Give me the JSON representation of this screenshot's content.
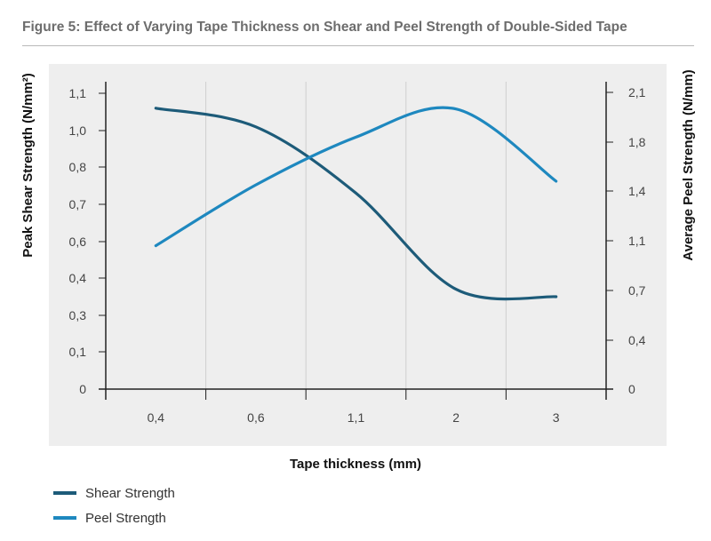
{
  "header": {
    "title": "Figure 5: Effect of Varying Tape Thickness on Shear and Peel Strength of Double-Sided Tape"
  },
  "colors": {
    "shear": "#1d5b79",
    "peel": "#1e88bf",
    "axis": "#222222",
    "grid": "#cfcfcf",
    "panel": "#eeeeee"
  },
  "chart_data": {
    "type": "line",
    "title": "Figure 5: Effect of Varying Tape Thickness on Shear and Peel Strength of Double-Sided Tape",
    "xlabel": "Tape thickness (mm)",
    "ylabel_left": "Peak Shear Strength (N/mm²)",
    "ylabel_right": "Average Peel Strength (N/mm)",
    "categories": [
      "0,4",
      "0,6",
      "1,1",
      "2",
      "3"
    ],
    "left_axis_ticks": [
      "0",
      "0,1",
      "0,3",
      "0,4",
      "0,6",
      "0,7",
      "0,8",
      "1,0",
      "1,1"
    ],
    "right_axis_ticks": [
      "0",
      "0,4",
      "0,7",
      "1,1",
      "1,4",
      "1,8",
      "2,1"
    ],
    "grid": "vertical",
    "legend_position": "bottom-left",
    "series": [
      {
        "name": "Shear Strength",
        "axis": "left",
        "x": [
          "0,4",
          "0,6",
          "1,1",
          "2",
          "3"
        ],
        "values": [
          1.06,
          1.01,
          0.73,
          0.37,
          0.35
        ]
      },
      {
        "name": "Peel Strength",
        "axis": "right",
        "x": [
          "0,4",
          "0,6",
          "1,1",
          "2",
          "3"
        ],
        "values": [
          1.06,
          1.45,
          1.83,
          2.0,
          1.48
        ]
      }
    ]
  }
}
